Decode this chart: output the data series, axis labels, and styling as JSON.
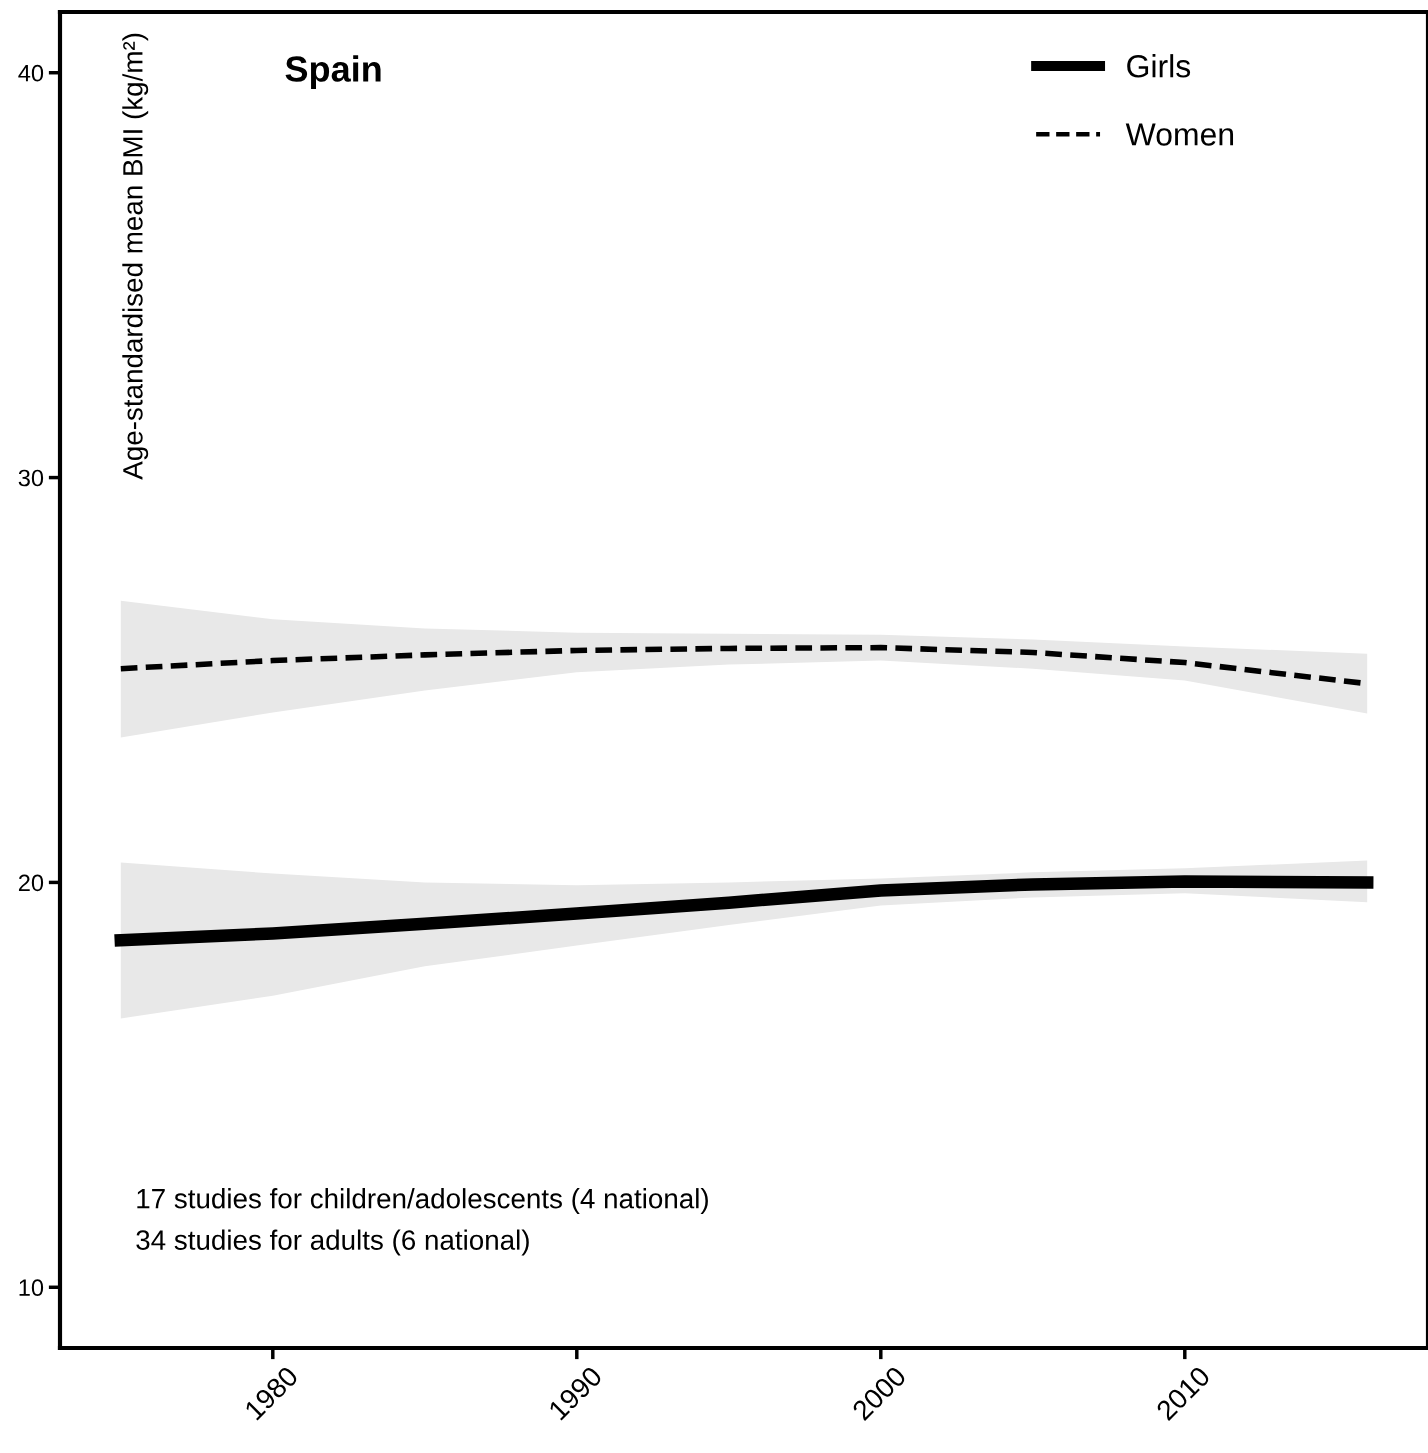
{
  "chart_data": {
    "type": "line",
    "title": "Spain",
    "ylabel": "Age-standardised mean BMI (kg/m²)",
    "x": [
      1975,
      1980,
      1985,
      1990,
      1995,
      2000,
      2005,
      2010,
      2016
    ],
    "series": [
      {
        "name": "Girls",
        "color": "#000000",
        "line_style": "solid",
        "values": [
          18.57,
          18.74,
          18.98,
          19.23,
          19.5,
          19.8,
          19.95,
          20.02,
          20.0
        ],
        "lower": [
          16.64,
          17.2,
          17.93,
          18.44,
          18.95,
          19.43,
          19.63,
          19.73,
          19.51
        ],
        "upper": [
          20.49,
          20.22,
          20.0,
          19.93,
          20.0,
          20.1,
          20.25,
          20.35,
          20.54
        ]
      },
      {
        "name": "Women",
        "color": "#000000",
        "line_style": "dashed",
        "values": [
          25.28,
          25.48,
          25.62,
          25.73,
          25.78,
          25.8,
          25.68,
          25.43,
          24.91
        ],
        "lower": [
          23.58,
          24.2,
          24.74,
          25.19,
          25.38,
          25.48,
          25.28,
          24.99,
          24.17
        ],
        "upper": [
          26.96,
          26.5,
          26.27,
          26.17,
          26.14,
          26.12,
          26.0,
          25.83,
          25.65
        ]
      }
    ],
    "xlim": [
      1973,
      2018
    ],
    "ylim": [
      8.5,
      41.5
    ],
    "xticks": [
      1980,
      1990,
      2000,
      2010
    ],
    "yticks": [
      10,
      20,
      30,
      40
    ],
    "grid": false,
    "legend": "top right",
    "annotations": [
      "17 studies for children/adolescents (4 national)",
      "34 studies for adults (6 national)"
    ]
  }
}
